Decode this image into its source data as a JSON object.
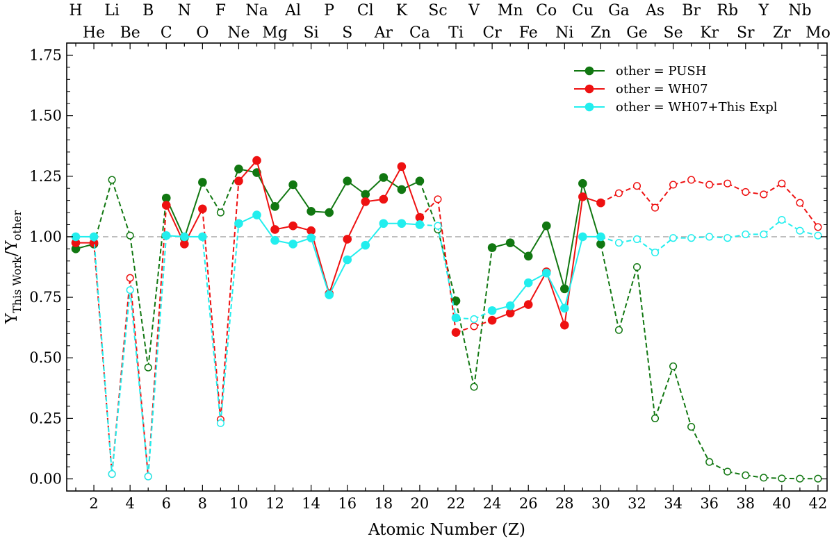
{
  "chart_data": {
    "type": "line",
    "xlabel": "Atomic Number (Z)",
    "ylabel_main": "Y",
    "ylabel_sub1": "This Work",
    "ylabel_mid": "/Y",
    "ylabel_sub2": "other",
    "xlim": [
      0.5,
      42.5
    ],
    "ylim": [
      -0.05,
      1.8
    ],
    "yticks": [
      0.0,
      0.25,
      0.5,
      0.75,
      1.0,
      1.25,
      1.5,
      1.75
    ],
    "ytick_labels": [
      "0.00",
      "0.25",
      "0.50",
      "0.75",
      "1.00",
      "1.25",
      "1.50",
      "1.75"
    ],
    "xticks": [
      2,
      4,
      6,
      8,
      10,
      12,
      14,
      16,
      18,
      20,
      22,
      24,
      26,
      28,
      30,
      32,
      34,
      36,
      38,
      40,
      42
    ],
    "xtick_labels": [
      "2",
      "4",
      "6",
      "8",
      "10",
      "12",
      "14",
      "16",
      "18",
      "20",
      "22",
      "24",
      "26",
      "28",
      "30",
      "32",
      "34",
      "36",
      "38",
      "40",
      "42"
    ],
    "reference_line": 1.0,
    "elements_top_row": [
      {
        "z": 1,
        "s": "H"
      },
      {
        "z": 3,
        "s": "Li"
      },
      {
        "z": 5,
        "s": "B"
      },
      {
        "z": 7,
        "s": "N"
      },
      {
        "z": 9,
        "s": "F"
      },
      {
        "z": 11,
        "s": "Na"
      },
      {
        "z": 13,
        "s": "Al"
      },
      {
        "z": 15,
        "s": "P"
      },
      {
        "z": 17,
        "s": "Cl"
      },
      {
        "z": 19,
        "s": "K"
      },
      {
        "z": 21,
        "s": "Sc"
      },
      {
        "z": 23,
        "s": "V"
      },
      {
        "z": 25,
        "s": "Mn"
      },
      {
        "z": 27,
        "s": "Co"
      },
      {
        "z": 29,
        "s": "Cu"
      },
      {
        "z": 31,
        "s": "Ga"
      },
      {
        "z": 33,
        "s": "As"
      },
      {
        "z": 35,
        "s": "Br"
      },
      {
        "z": 37,
        "s": "Rb"
      },
      {
        "z": 39,
        "s": "Y"
      },
      {
        "z": 41,
        "s": "Nb"
      }
    ],
    "elements_bottom_row": [
      {
        "z": 2,
        "s": "He"
      },
      {
        "z": 4,
        "s": "Be"
      },
      {
        "z": 6,
        "s": "C"
      },
      {
        "z": 8,
        "s": "O"
      },
      {
        "z": 10,
        "s": "Ne"
      },
      {
        "z": 12,
        "s": "Mg"
      },
      {
        "z": 14,
        "s": "Si"
      },
      {
        "z": 16,
        "s": "S"
      },
      {
        "z": 18,
        "s": "Ar"
      },
      {
        "z": 20,
        "s": "Ca"
      },
      {
        "z": 22,
        "s": "Ti"
      },
      {
        "z": 24,
        "s": "Cr"
      },
      {
        "z": 26,
        "s": "Fe"
      },
      {
        "z": 28,
        "s": "Ni"
      },
      {
        "z": 30,
        "s": "Zn"
      },
      {
        "z": 32,
        "s": "Ge"
      },
      {
        "z": 34,
        "s": "Se"
      },
      {
        "z": 36,
        "s": "Kr"
      },
      {
        "z": 38,
        "s": "Sr"
      },
      {
        "z": 40,
        "s": "Zr"
      },
      {
        "z": 42,
        "s": "Mo"
      }
    ],
    "legend_position": "top-right",
    "series": [
      {
        "name": "other = PUSH",
        "color": "#117711",
        "x": [
          1,
          2,
          3,
          4,
          5,
          6,
          7,
          8,
          9,
          10,
          11,
          12,
          13,
          14,
          15,
          16,
          17,
          18,
          19,
          20,
          21,
          22,
          23,
          24,
          25,
          26,
          27,
          28,
          29,
          30,
          31,
          32,
          33,
          34,
          35,
          36,
          37,
          38,
          39,
          40,
          41,
          42
        ],
        "y": [
          0.95,
          0.97,
          1.235,
          1.005,
          0.46,
          1.16,
          0.995,
          1.225,
          1.1,
          1.28,
          1.265,
          1.125,
          1.215,
          1.105,
          1.1,
          1.23,
          1.175,
          1.245,
          1.195,
          1.23,
          1.03,
          0.735,
          0.38,
          0.955,
          0.975,
          0.92,
          1.045,
          0.785,
          1.22,
          0.97,
          0.615,
          0.875,
          0.25,
          0.465,
          0.215,
          0.07,
          0.03,
          0.015,
          0.005,
          0.002,
          0.001,
          0.001
        ],
        "filled": [
          true,
          true,
          false,
          false,
          false,
          true,
          true,
          true,
          false,
          true,
          true,
          true,
          true,
          true,
          true,
          true,
          true,
          true,
          true,
          true,
          false,
          true,
          false,
          true,
          true,
          true,
          true,
          true,
          true,
          true,
          false,
          false,
          false,
          false,
          false,
          false,
          false,
          false,
          false,
          false,
          false,
          false
        ]
      },
      {
        "name": "other = WH07",
        "color": "#ee1111",
        "x": [
          1,
          2,
          3,
          4,
          5,
          6,
          7,
          8,
          9,
          10,
          11,
          12,
          13,
          14,
          15,
          16,
          17,
          18,
          19,
          20,
          21,
          22,
          23,
          24,
          25,
          26,
          27,
          28,
          29,
          30,
          31,
          32,
          33,
          34,
          35,
          36,
          37,
          38,
          39,
          40,
          41,
          42
        ],
        "y": [
          0.975,
          0.975,
          0.02,
          0.83,
          0.01,
          1.13,
          0.97,
          1.115,
          0.245,
          1.23,
          1.315,
          1.03,
          1.045,
          1.025,
          0.765,
          0.99,
          1.145,
          1.155,
          1.29,
          1.08,
          1.155,
          0.605,
          0.63,
          0.655,
          0.685,
          0.72,
          0.855,
          0.635,
          1.165,
          1.14,
          1.18,
          1.21,
          1.12,
          1.215,
          1.235,
          1.215,
          1.22,
          1.185,
          1.175,
          1.22,
          1.14,
          1.04
        ],
        "filled": [
          true,
          true,
          false,
          false,
          false,
          true,
          true,
          true,
          false,
          true,
          true,
          true,
          true,
          true,
          true,
          true,
          true,
          true,
          true,
          true,
          false,
          true,
          false,
          true,
          true,
          true,
          true,
          true,
          true,
          true,
          false,
          false,
          false,
          false,
          false,
          false,
          false,
          false,
          false,
          false,
          false,
          false
        ]
      },
      {
        "name": "other = WH07+This Expl",
        "color": "#22eeee",
        "x": [
          1,
          2,
          3,
          4,
          5,
          6,
          7,
          8,
          9,
          10,
          11,
          12,
          13,
          14,
          15,
          16,
          17,
          18,
          19,
          20,
          21,
          22,
          23,
          24,
          25,
          26,
          27,
          28,
          29,
          30,
          31,
          32,
          33,
          34,
          35,
          36,
          37,
          38,
          39,
          40,
          41,
          42
        ],
        "y": [
          1.0,
          1.0,
          0.02,
          0.78,
          0.01,
          1.005,
          1.0,
          1.0,
          0.23,
          1.055,
          1.09,
          0.985,
          0.97,
          0.995,
          0.76,
          0.905,
          0.965,
          1.055,
          1.055,
          1.05,
          1.045,
          0.665,
          0.66,
          0.695,
          0.715,
          0.81,
          0.85,
          0.705,
          1.0,
          1.0,
          0.975,
          0.99,
          0.935,
          0.995,
          0.995,
          1.0,
          0.995,
          1.01,
          1.01,
          1.07,
          1.025,
          1.005
        ],
        "filled": [
          true,
          true,
          false,
          false,
          false,
          true,
          true,
          true,
          false,
          true,
          true,
          true,
          true,
          true,
          true,
          true,
          true,
          true,
          true,
          true,
          false,
          true,
          false,
          true,
          true,
          true,
          true,
          true,
          true,
          true,
          false,
          false,
          false,
          false,
          false,
          false,
          false,
          false,
          false,
          false,
          false,
          false
        ]
      }
    ]
  }
}
